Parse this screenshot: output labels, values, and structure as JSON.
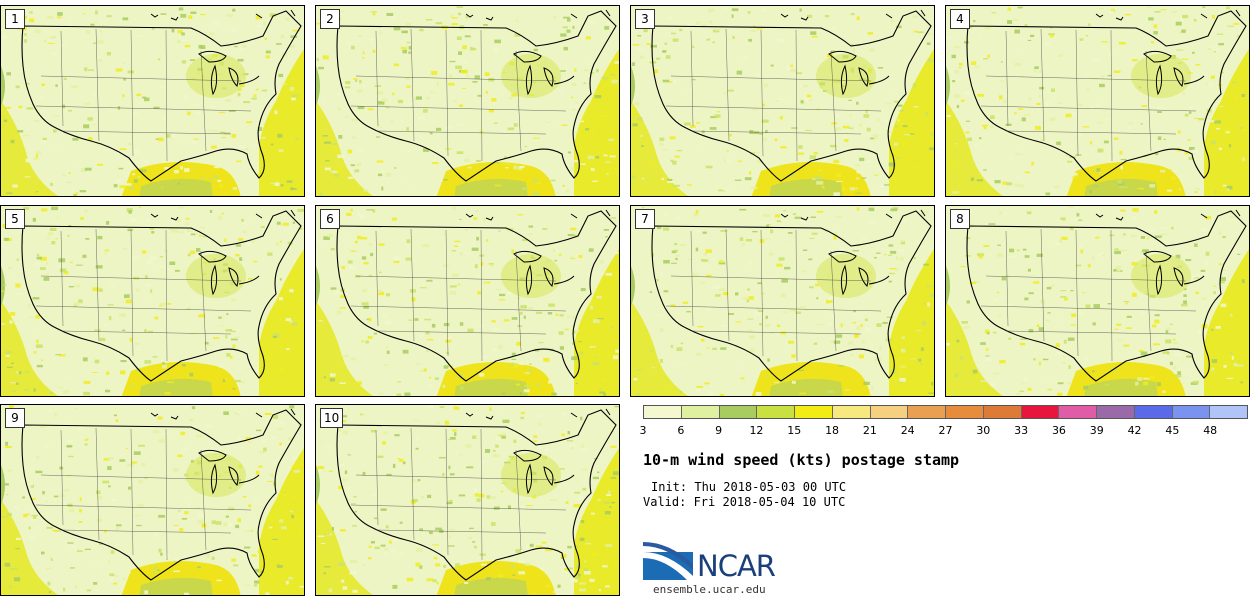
{
  "panels": [
    {
      "label": "1"
    },
    {
      "label": "2"
    },
    {
      "label": "3"
    },
    {
      "label": "4"
    },
    {
      "label": "5"
    },
    {
      "label": "6"
    },
    {
      "label": "7"
    },
    {
      "label": "8"
    },
    {
      "label": "9"
    },
    {
      "label": "10"
    }
  ],
  "colorbar": {
    "ticks": [
      "3",
      "6",
      "9",
      "12",
      "15",
      "18",
      "21",
      "24",
      "27",
      "30",
      "33",
      "36",
      "39",
      "42",
      "45",
      "48"
    ],
    "colors": [
      "#f3f8d0",
      "#dff0a0",
      "#a8cc60",
      "#c8e040",
      "#f0ec14",
      "#f8e880",
      "#f5d080",
      "#e9a050",
      "#e68c3c",
      "#dd7a36",
      "#e8163c",
      "#e05ca6",
      "#9a6aa8",
      "#5a6ae8",
      "#7a92f0",
      "#b0c4f8"
    ]
  },
  "title": "10-m wind speed (kts) postage stamp",
  "init": "Init: Thu 2018-05-03 00 UTC",
  "valid": "Valid: Fri 2018-05-04 10 UTC",
  "logo": {
    "text": "NCAR"
  },
  "site": "ensemble.ucar.edu"
}
